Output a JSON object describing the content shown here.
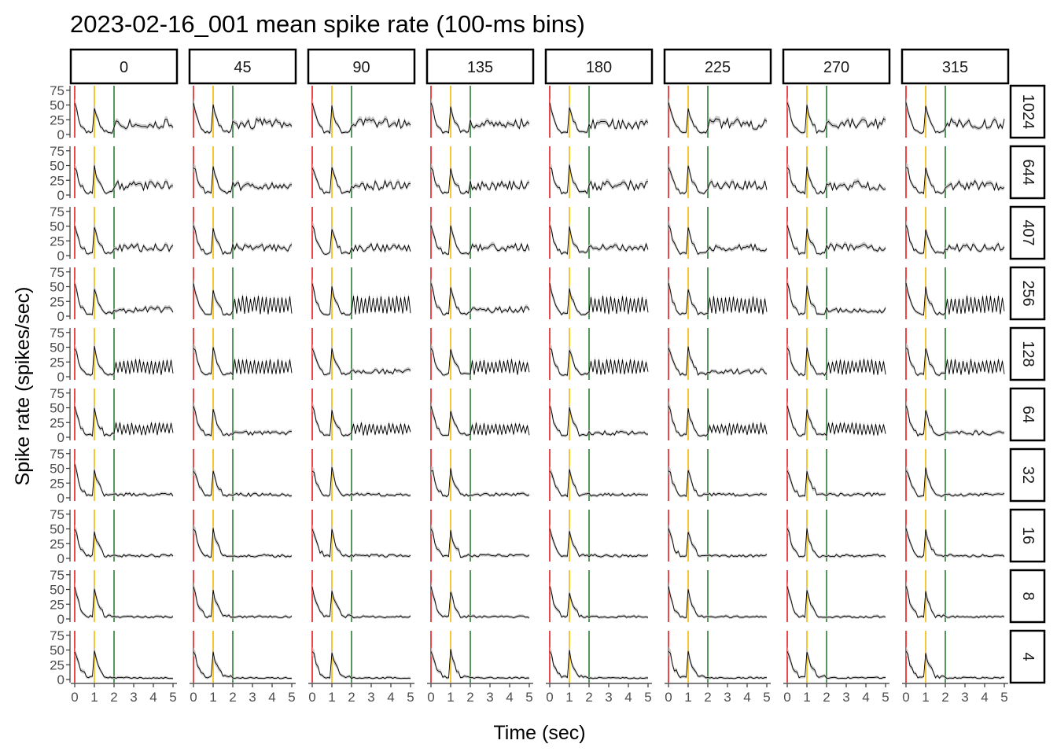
{
  "chart_data": {
    "type": "line",
    "title": "2023-02-16_001 mean spike rate (100-ms bins)",
    "xlabel": "Time (sec)",
    "ylabel": "Spike rate (spikes/sec)",
    "xlim": [
      0,
      5
    ],
    "ylim": [
      0,
      80
    ],
    "x_ticks": [
      "0",
      "1",
      "2",
      "3",
      "4",
      "5"
    ],
    "y_ticks": [
      "0",
      "25",
      "50",
      "75"
    ],
    "facet_columns": [
      "0",
      "45",
      "90",
      "135",
      "180",
      "225",
      "270",
      "315"
    ],
    "facet_rows": [
      "1024",
      "644",
      "407",
      "256",
      "128",
      "64",
      "32",
      "16",
      "8",
      "4"
    ],
    "grid": false,
    "bin_width_sec": 0.1,
    "event_markers": [
      {
        "time_sec": 0,
        "color": "#e41a1c"
      },
      {
        "time_sec": 1,
        "color": "#f5b800"
      },
      {
        "time_sec": 2,
        "color": "#2e7d32"
      }
    ],
    "line_color": "#000000",
    "ribbon_color": "#bdbdbd",
    "strip_fill": "#ffffff",
    "strip_border": "#000000",
    "axis_color": "#333333"
  }
}
